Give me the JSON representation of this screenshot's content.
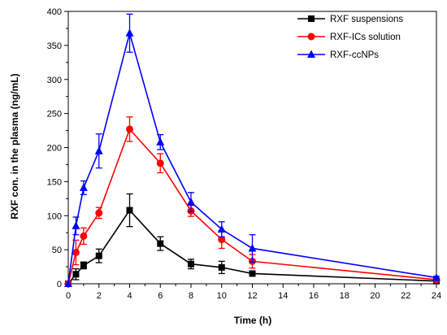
{
  "chart_data": {
    "type": "line",
    "xlabel": "Time (h)",
    "ylabel": "RXF con. in the plasma (ng/mL)",
    "xlim": [
      0,
      24
    ],
    "ylim": [
      0,
      400
    ],
    "xticks": [
      0,
      2,
      4,
      6,
      8,
      10,
      12,
      14,
      16,
      18,
      20,
      22,
      24
    ],
    "yticks": [
      0,
      50,
      100,
      150,
      200,
      250,
      300,
      350,
      400
    ],
    "grid": false,
    "legend_position": "top-right",
    "x": [
      0,
      0.5,
      1,
      2,
      4,
      6,
      8,
      10,
      12,
      24
    ],
    "series": [
      {
        "name": "RXF suspensions",
        "color": "#000000",
        "marker": "square",
        "values": [
          0,
          14,
          27,
          41,
          108,
          59,
          29,
          24,
          15,
          4
        ],
        "errors": [
          0,
          8,
          5,
          10,
          24,
          10,
          7,
          9,
          3,
          2
        ]
      },
      {
        "name": "RXF-ICs solution",
        "color": "#ff0000",
        "marker": "circle",
        "values": [
          0,
          46,
          70,
          104,
          227,
          177,
          107,
          65,
          33,
          6
        ],
        "errors": [
          0,
          18,
          12,
          8,
          18,
          14,
          8,
          13,
          10,
          2
        ]
      },
      {
        "name": "RXF-ccNPs",
        "color": "#0000ff",
        "marker": "triangle",
        "values": [
          0,
          85,
          141,
          195,
          368,
          208,
          120,
          80,
          52,
          9
        ],
        "errors": [
          0,
          13,
          10,
          25,
          28,
          11,
          14,
          11,
          20,
          2
        ]
      }
    ]
  }
}
